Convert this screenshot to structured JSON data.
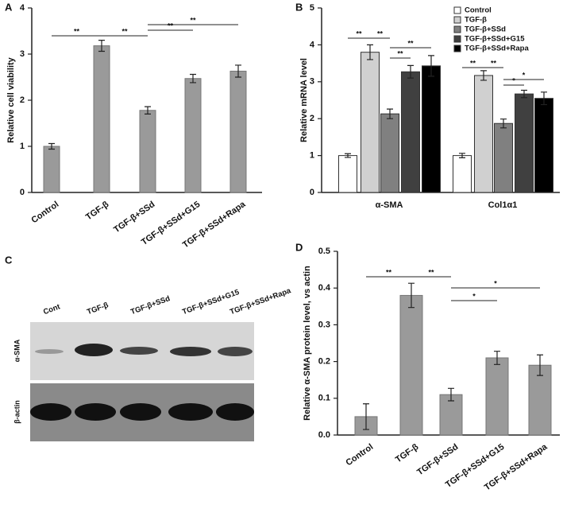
{
  "chart_data": [
    {
      "type": "bar",
      "panel_label": "A",
      "ylabel": "Relative cell viability",
      "categories": [
        "Control",
        "TGF-β",
        "TGF-β+SSd",
        "TGF-β+SSd+G15",
        "TGF-β+SSd+Rapa"
      ],
      "values": [
        1.0,
        3.18,
        1.78,
        2.47,
        2.63
      ],
      "errors": [
        0.06,
        0.12,
        0.08,
        0.09,
        0.13
      ],
      "color": "#9a9a9a",
      "ylim": [
        0,
        4
      ],
      "yticks": [
        0,
        1,
        2,
        3,
        4
      ],
      "significance": [
        "**",
        "**",
        "**",
        "**"
      ]
    },
    {
      "type": "grouped_bar",
      "panel_label": "B",
      "ylabel": "Relative mRNA level",
      "categories": [
        "α-SMA",
        "Col1α1"
      ],
      "series": [
        {
          "name": "Control",
          "color": "#ffffff",
          "values": [
            1.0,
            1.0
          ],
          "errors": [
            0.05,
            0.06
          ]
        },
        {
          "name": "TGF-β",
          "color": "#d0d0d0",
          "values": [
            3.8,
            3.17
          ],
          "errors": [
            0.2,
            0.13
          ]
        },
        {
          "name": "TGF-β+SSd",
          "color": "#808080",
          "values": [
            2.13,
            1.87
          ],
          "errors": [
            0.13,
            0.12
          ]
        },
        {
          "name": "TGF-β+SSd+G15",
          "color": "#404040",
          "values": [
            3.27,
            2.67
          ],
          "errors": [
            0.17,
            0.1
          ]
        },
        {
          "name": "TGF-β+SSd+Rapa",
          "color": "#000000",
          "values": [
            3.43,
            2.55
          ],
          "errors": [
            0.28,
            0.17
          ]
        }
      ],
      "ylim": [
        0,
        5
      ],
      "yticks": [
        0,
        1,
        2,
        3,
        4,
        5
      ],
      "legend": "top-right",
      "significance": [
        "**",
        "**",
        "**",
        "**",
        "**",
        "**",
        "*",
        "*"
      ]
    },
    {
      "type": "bar",
      "panel_label": "D",
      "ylabel": "Relative α-SMA protein level, vs actin",
      "categories": [
        "Control",
        "TGF-β",
        "TGF-β+SSd",
        "TGF-β+SSd+G15",
        "TGF-β+SSd+Rapa"
      ],
      "values": [
        0.05,
        0.38,
        0.11,
        0.21,
        0.19
      ],
      "errors": [
        0.035,
        0.033,
        0.017,
        0.018,
        0.028
      ],
      "color": "#9a9a9a",
      "ylim": [
        0,
        0.5
      ],
      "yticks": [
        {
          "value": 0,
          "label": "0.0"
        },
        0.1,
        0.2,
        0.3,
        0.4,
        0.5
      ],
      "significance": [
        "**",
        "**",
        "*",
        "*"
      ]
    }
  ],
  "blot": {
    "panel_label": "C",
    "lanes": [
      "Cont",
      "TGF-β",
      "TGF-β+SSd",
      "TGF-β+SSd+G15",
      "TGF-β+SSd+Rapa"
    ],
    "rows": [
      "α-SMA",
      "β-actin"
    ]
  }
}
